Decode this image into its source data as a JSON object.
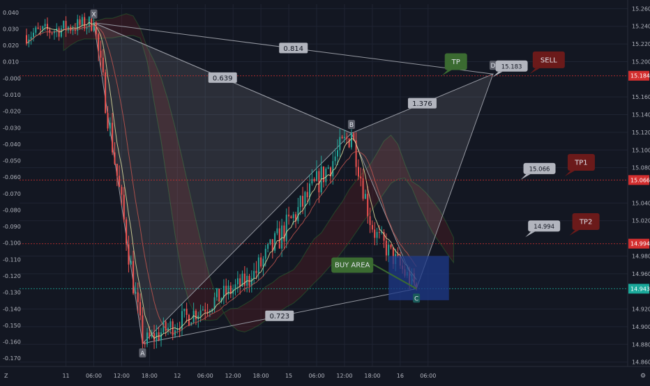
{
  "chart_data": {
    "type": "candlestick",
    "instrument_hint": "",
    "colors": {
      "background": "#131722",
      "grid": "#1f2433",
      "axis_text": "#b2b5be",
      "bull": "#26a69a",
      "bear": "#ef5350",
      "pattern_fill": "#ffffff",
      "pattern_line": "#9598a1",
      "cloud_green": "#2e7d32",
      "cloud_red": "#7b1f24",
      "buy_box": "#1e3a8a",
      "label_grey": "#b2b5be",
      "label_green": "#3b6b31",
      "label_red": "#6b1a1a",
      "price_tag_red": "#d32f2f",
      "price_tag_teal": "#1aa89a"
    },
    "left_axis": {
      "ticks": [
        "0.040",
        "0.030",
        "0.020",
        "0.010",
        "-0.000",
        "-0.010",
        "-0.020",
        "-0.030",
        "-0.040",
        "-0.050",
        "-0.060",
        "-0.070",
        "-0.080",
        "-0.090",
        "-0.100",
        "-0.110",
        "-0.120",
        "-0.130",
        "-0.140",
        "-0.150",
        "-0.160",
        "-0.170"
      ],
      "range": [
        -0.175,
        0.045
      ]
    },
    "right_axis": {
      "ticks": [
        "15.260",
        "15.240",
        "15.220",
        "15.200",
        "15.160",
        "15.140",
        "15.120",
        "15.100",
        "15.080",
        "15.040",
        "15.020",
        "14.980",
        "14.960",
        "14.920",
        "14.900",
        "14.880",
        "14.860"
      ],
      "range": [
        14.855,
        15.265
      ]
    },
    "price_tags": [
      {
        "value": "15.184",
        "price": 15.184,
        "color": "red"
      },
      {
        "value": "15.066",
        "price": 15.066,
        "color": "red"
      },
      {
        "value": "14.994",
        "price": 14.994,
        "color": "red"
      },
      {
        "value": "14.943",
        "price": 14.943,
        "color": "teal"
      }
    ],
    "x_axis": {
      "ticks": [
        "11",
        "06:00",
        "12:00",
        "18:00",
        "12",
        "06:00",
        "12:00",
        "18:00",
        "15",
        "06:00",
        "12:00",
        "18:00",
        "16",
        "06:00"
      ],
      "range_hours": [
        -10,
        121
      ]
    },
    "corner_labels": {
      "left": "Z",
      "right": "⚙"
    },
    "pattern": {
      "points": [
        {
          "name": "X",
          "hour": 6,
          "price": 15.244
        },
        {
          "name": "A",
          "hour": 16.5,
          "price": 14.881
        },
        {
          "name": "B",
          "hour": 61.5,
          "price": 15.119
        },
        {
          "name": "C",
          "hour": 75.5,
          "price": 14.943
        },
        {
          "name": "D",
          "hour": 92,
          "price": 15.186
        }
      ],
      "ratios": [
        {
          "text": "0.814",
          "between": [
            "X",
            "D"
          ]
        },
        {
          "text": "0.639",
          "between": [
            "X",
            "B"
          ]
        },
        {
          "text": "1.376",
          "between": [
            "B",
            "D"
          ]
        },
        {
          "text": "0.723",
          "between": [
            "A",
            "C"
          ]
        }
      ]
    },
    "buy_area": {
      "label": "BUY AREA",
      "from_hour": 69.5,
      "to_hour": 82.5,
      "price_low": 14.93,
      "price_high": 14.98
    },
    "annotations": [
      {
        "text": "TP",
        "style": "green",
        "hour": 84,
        "price": 15.2
      },
      {
        "text": "15.183",
        "style": "grey",
        "hour": 96,
        "price": 15.195
      },
      {
        "text": "SELL",
        "style": "red",
        "hour": 104,
        "price": 15.202
      },
      {
        "text": "15.066",
        "style": "grey",
        "hour": 102,
        "price": 15.079
      },
      {
        "text": "TP1",
        "style": "red",
        "hour": 111,
        "price": 15.086
      },
      {
        "text": "14.994",
        "style": "grey",
        "hour": 103,
        "price": 15.014
      },
      {
        "text": "TP2",
        "style": "red",
        "hour": 112,
        "price": 15.019
      }
    ],
    "series": [
      {
        "name": "",
        "kind": "candles",
        "segments": [
          {
            "from_hour": -9,
            "to_hour": 6,
            "start": 15.23,
            "end": 15.244,
            "noise": 0.01
          },
          {
            "from_hour": 6,
            "to_hour": 16.5,
            "start": 15.244,
            "end": 14.881,
            "noise": 0.016
          },
          {
            "from_hour": 16.5,
            "to_hour": 40,
            "start": 14.881,
            "end": 14.955,
            "noise": 0.012
          },
          {
            "from_hour": 40,
            "to_hour": 61.5,
            "start": 14.955,
            "end": 15.119,
            "noise": 0.016
          },
          {
            "from_hour": 61.5,
            "to_hour": 66,
            "start": 15.119,
            "end": 15.01,
            "noise": 0.014
          },
          {
            "from_hour": 66,
            "to_hour": 75.5,
            "start": 15.01,
            "end": 14.943,
            "noise": 0.012
          }
        ]
      }
    ]
  }
}
